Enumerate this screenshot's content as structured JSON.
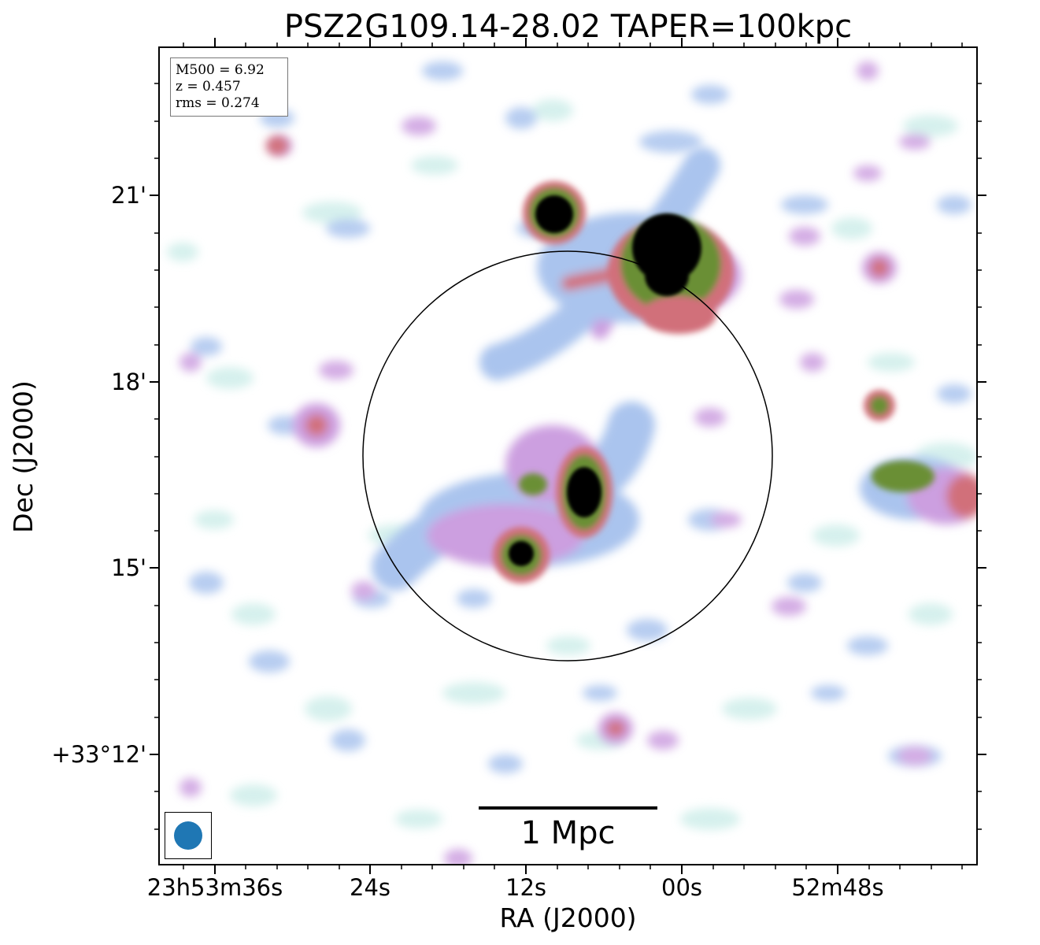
{
  "figure": {
    "title": "PSZ2G109.14-28.02 TAPER=100kpc",
    "xlabel": "RA (J2000)",
    "ylabel": "Dec (J2000)"
  },
  "info": {
    "line1": "M500 = 6.92",
    "line2": "z = 0.457",
    "line3": "rms = 0.274"
  },
  "scalebar": {
    "label": "1 Mpc"
  },
  "x_ticks": [
    "23h53m36s",
    "24s",
    "12s",
    "00s",
    "52m48s"
  ],
  "y_ticks": [
    "21'",
    "18'",
    "15'",
    "+33°12'"
  ],
  "colors": {
    "beam": "#1f77b4",
    "colormap": [
      "#cfeeea",
      "#aac4ee",
      "#cc9fe0",
      "#d1707a",
      "#6a8f35",
      "#000000"
    ]
  }
}
